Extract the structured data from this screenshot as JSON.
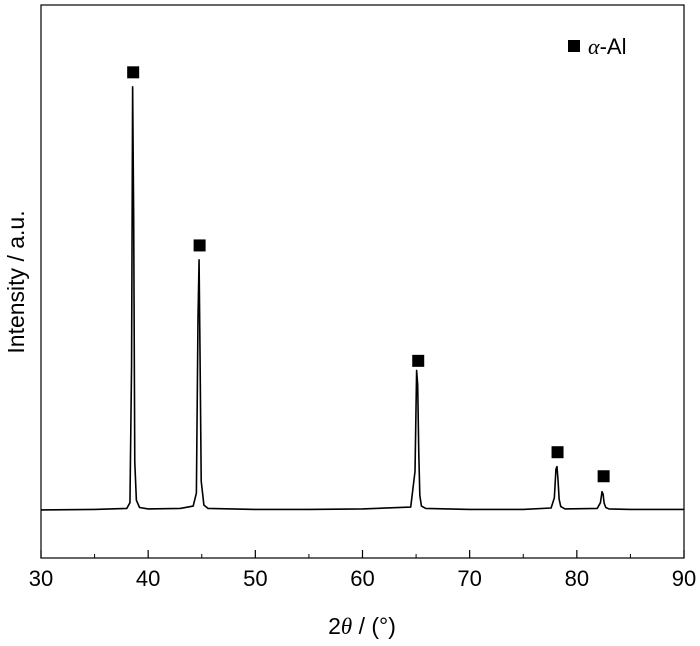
{
  "chart_data": {
    "type": "line",
    "title": "",
    "xlabel_prefix": "2",
    "xlabel_symbol": "θ",
    "xlabel_suffix": " / (°)",
    "ylabel": "Intensity / a.u.",
    "xlim": [
      30,
      90
    ],
    "ylim": [
      -10,
      105
    ],
    "xticks": [
      30,
      40,
      50,
      60,
      70,
      80,
      90
    ],
    "yticks_shown": false,
    "grid": false,
    "legend": {
      "position": "top-right",
      "marker": "filled-square",
      "label_symbol": "α",
      "label_suffix": "-Al"
    },
    "series": [
      {
        "name": "α-Al",
        "color": "#000000",
        "x": [
          30,
          35,
          38.0,
          38.3,
          38.45,
          38.55,
          38.65,
          38.75,
          38.9,
          39.2,
          40,
          43,
          44.2,
          44.5,
          44.65,
          44.75,
          44.85,
          44.95,
          45.2,
          45.6,
          50,
          55,
          60,
          64.5,
          64.9,
          65.05,
          65.15,
          65.25,
          65.35,
          65.5,
          65.9,
          70,
          75,
          77.6,
          77.9,
          78.05,
          78.15,
          78.25,
          78.35,
          78.5,
          78.9,
          81.9,
          82.2,
          82.35,
          82.45,
          82.55,
          82.7,
          83.0,
          85,
          90
        ],
        "y": [
          0.0,
          0.1,
          0.3,
          1.5,
          30,
          88,
          60,
          10,
          2.0,
          0.5,
          0.2,
          0.3,
          0.8,
          3.5,
          40,
          52,
          30,
          6,
          1.0,
          0.3,
          0.1,
          0.1,
          0.2,
          0.6,
          8,
          29,
          26,
          12,
          3,
          0.8,
          0.3,
          0.1,
          0.1,
          0.4,
          2.5,
          8.5,
          9,
          6,
          2.2,
          0.7,
          0.2,
          0.3,
          1.5,
          3.8,
          3.3,
          1.4,
          0.5,
          0.2,
          0.1,
          0.1
        ]
      }
    ],
    "peak_markers": [
      {
        "x": 38.6,
        "y": 91
      },
      {
        "x": 44.8,
        "y": 55
      },
      {
        "x": 65.2,
        "y": 31
      },
      {
        "x": 78.2,
        "y": 12
      },
      {
        "x": 82.5,
        "y": 7
      }
    ]
  }
}
